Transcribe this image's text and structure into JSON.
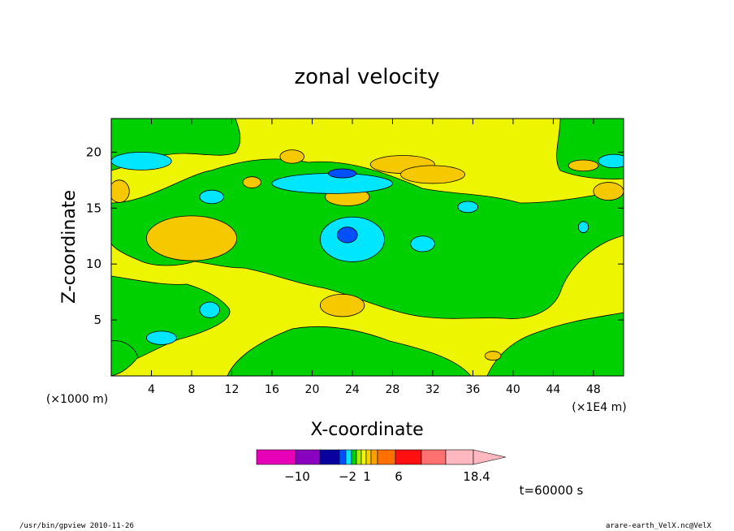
{
  "chart_data": {
    "type": "contour",
    "title": "zonal velocity",
    "xlabel": "X-coordinate",
    "ylabel": "Z-coordinate",
    "x_unit_left": "(×1000 m)",
    "x_unit_right": "(×1E4 m)",
    "xlim": [
      0,
      51
    ],
    "ylim": [
      0,
      23
    ],
    "x_ticks": [
      4,
      8,
      12,
      16,
      20,
      24,
      28,
      32,
      36,
      40,
      44,
      48
    ],
    "y_ticks": [
      5,
      10,
      15,
      20
    ],
    "fill_regions": [
      {
        "level": 6,
        "color": "#f5c800",
        "cx": 8,
        "cy": 12.3,
        "rx": 4.5,
        "ry": 2.0
      },
      {
        "level": 6,
        "color": "#f5c800",
        "cx": 0.8,
        "cy": 16.5,
        "rx": 1.0,
        "ry": 1.0
      },
      {
        "level": 6,
        "color": "#f5c800",
        "cx": 23.5,
        "cy": 16.0,
        "rx": 2.2,
        "ry": 0.8
      },
      {
        "level": 6,
        "color": "#f5c800",
        "cx": 29,
        "cy": 18.9,
        "rx": 3.2,
        "ry": 0.8
      },
      {
        "level": 6,
        "color": "#f5c800",
        "cx": 18,
        "cy": 19.6,
        "rx": 1.2,
        "ry": 0.6
      },
      {
        "level": 6,
        "color": "#f5c800",
        "cx": 14,
        "cy": 17.3,
        "rx": 0.9,
        "ry": 0.5
      },
      {
        "level": 6,
        "color": "#f5c800",
        "cx": 23,
        "cy": 6.3,
        "rx": 2.2,
        "ry": 1.0
      },
      {
        "level": 6,
        "color": "#f5c800",
        "cx": 38,
        "cy": 1.8,
        "rx": 0.8,
        "ry": 0.4
      },
      {
        "level": 6,
        "color": "#f5c800",
        "cx": 47,
        "cy": 18.8,
        "rx": 1.5,
        "ry": 0.5
      },
      {
        "level": 6,
        "color": "#f5c800",
        "cx": 49.5,
        "cy": 16.5,
        "rx": 1.5,
        "ry": 0.8
      },
      {
        "level": 6,
        "color": "#f5c800",
        "cx": 32,
        "cy": 18.0,
        "rx": 3.2,
        "ry": 0.8
      },
      {
        "level": 0,
        "color": "#00e6ff",
        "cx": 3,
        "cy": 19.2,
        "rx": 3.0,
        "ry": 0.8
      },
      {
        "level": 0,
        "color": "#00e6ff",
        "cx": 24,
        "cy": 12.2,
        "rx": 3.2,
        "ry": 2.0
      },
      {
        "level": 0,
        "color": "#00e6ff",
        "cx": 22,
        "cy": 17.2,
        "rx": 6.0,
        "ry": 0.9
      },
      {
        "level": 0,
        "color": "#00e6ff",
        "cx": 10,
        "cy": 16.0,
        "rx": 1.2,
        "ry": 0.6
      },
      {
        "level": 0,
        "color": "#00e6ff",
        "cx": 31,
        "cy": 11.8,
        "rx": 1.2,
        "ry": 0.7
      },
      {
        "level": 0,
        "color": "#00e6ff",
        "cx": 35.5,
        "cy": 15.1,
        "rx": 1.0,
        "ry": 0.5
      },
      {
        "level": 0,
        "color": "#00e6ff",
        "cx": 9.8,
        "cy": 5.9,
        "rx": 1.0,
        "ry": 0.7
      },
      {
        "level": 0,
        "color": "#00e6ff",
        "cx": 5,
        "cy": 3.4,
        "rx": 1.5,
        "ry": 0.6
      },
      {
        "level": 0,
        "color": "#00e6ff",
        "cx": 50,
        "cy": 19.2,
        "rx": 1.5,
        "ry": 0.6
      },
      {
        "level": 0,
        "color": "#00e6ff",
        "cx": 47,
        "cy": 13.3,
        "rx": 0.5,
        "ry": 0.5
      },
      {
        "level": -2,
        "color": "#0050ff",
        "cx": 23.5,
        "cy": 12.6,
        "rx": 1.0,
        "ry": 0.7
      },
      {
        "level": -2,
        "color": "#0050ff",
        "cx": 23,
        "cy": 18.1,
        "rx": 1.4,
        "ry": 0.4
      }
    ],
    "colorbar": {
      "colors": [
        "#e800b8",
        "#8a00c0",
        "#0a00a0",
        "#0050ff",
        "#00e6ff",
        "#00d000",
        "#aaf000",
        "#f5f500",
        "#ffd000",
        "#ffa000",
        "#ff7000",
        "#ff1010",
        "#ff7070",
        "#ffb8c0"
      ],
      "labels": [
        "−10",
        "−2",
        "1",
        "6",
        "18.4"
      ]
    },
    "time_label": "t=60000 s"
  },
  "footer": {
    "left": "/usr/bin/gpview  2010-11-26",
    "right": "arare-earth_VelX.nc@VelX"
  }
}
